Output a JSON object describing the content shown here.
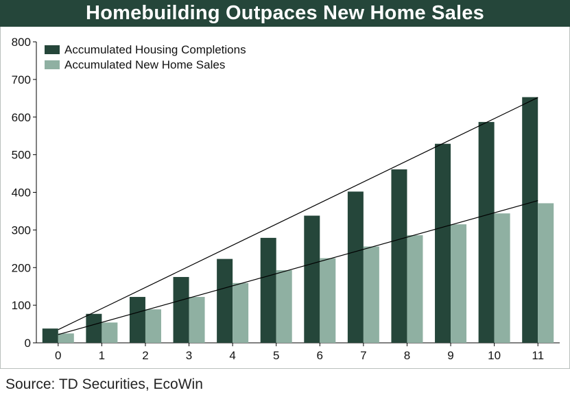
{
  "title": "Homebuilding Outpaces New Home Sales",
  "source": "Source: TD Securities, EcoWin",
  "colors": {
    "title_bg": "#25463a",
    "completions": "#25463a",
    "sales": "#8fb0a2",
    "trend": "#000000"
  },
  "chart_data": {
    "type": "bar",
    "title": "Homebuilding Outpaces New Home Sales",
    "xlabel": "",
    "ylabel": "",
    "categories": [
      "0",
      "1",
      "2",
      "3",
      "4",
      "5",
      "6",
      "7",
      "8",
      "9",
      "10",
      "11"
    ],
    "ylim": [
      0,
      800
    ],
    "yticks": [
      0,
      100,
      200,
      300,
      400,
      500,
      600,
      700,
      800
    ],
    "grid": false,
    "legend_position": "top-left",
    "series": [
      {
        "name": "Accumulated Housing Completions",
        "color": "#25463a",
        "values": [
          38,
          77,
          122,
          175,
          223,
          279,
          338,
          402,
          461,
          529,
          587,
          653
        ]
      },
      {
        "name": "Accumulated New Home Sales",
        "color": "#8fb0a2",
        "values": [
          25,
          54,
          89,
          122,
          159,
          193,
          225,
          256,
          286,
          315,
          344,
          371
        ]
      }
    ],
    "trend_lines": [
      {
        "series": "Accumulated Housing Completions",
        "start": [
          0,
          35
        ],
        "end": [
          11,
          652
        ]
      },
      {
        "series": "Accumulated New Home Sales",
        "start": [
          0,
          22
        ],
        "end": [
          11,
          378
        ]
      }
    ]
  }
}
